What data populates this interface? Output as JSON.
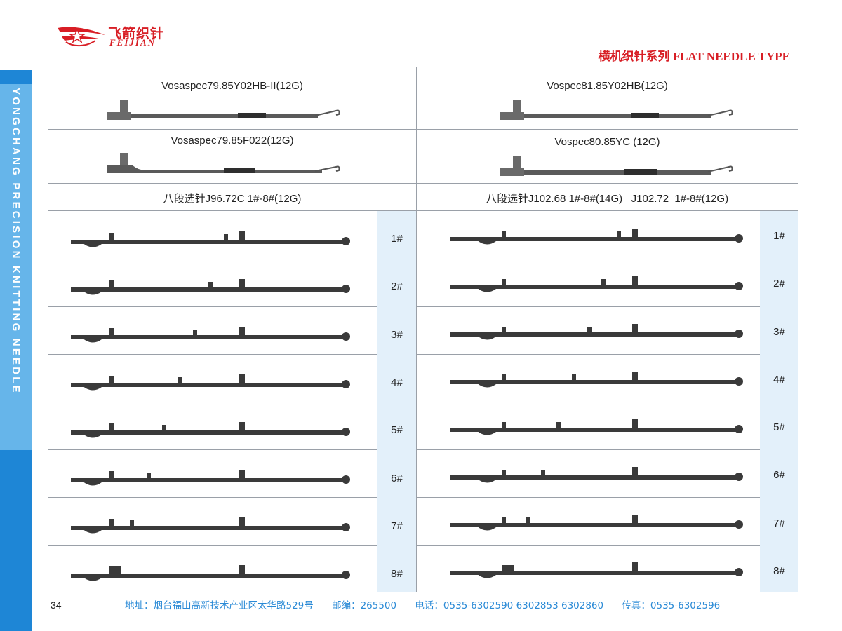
{
  "brand": {
    "name_cn": "飞箭织针",
    "name_en": "FEIJIAN",
    "side_text": "YONGCHANG PRECISION KNITTING NEEDLE"
  },
  "series_title": "横机织针系列 FLAT NEEDLE TYPE",
  "models": [
    "Vosaspec79.85Y02HB-II(12G)",
    "Vospec81.85Y02HB(12G)",
    "Vosaspec79.85F022(12G)",
    "Vospec80.85YC (12G)"
  ],
  "selector_headers": {
    "left": "八段选针J96.72C 1#-8#(12G)",
    "right": "八段选针J102.68 1#-8#(14G)   J102.72  1#-8#(12G)"
  },
  "left_numbers": [
    "1#",
    "2#",
    "3#",
    "4#",
    "5#",
    "6#",
    "7#",
    "8#"
  ],
  "right_numbers": [
    "1#",
    "2#",
    "3#",
    "4#",
    "5#",
    "6#",
    "7#",
    "8#"
  ],
  "footer": {
    "page_number": "34",
    "address": "地址：烟台福山高新技术产业区太华路529号",
    "postcode": "邮编：265500",
    "phone": "电话：0535-6302590 6302853 6302860",
    "fax": "传真：0535-6302596"
  },
  "colors": {
    "brand_red": "#d81e25",
    "side_blue": "#1e86d6",
    "side_light_blue": "#66b5ea",
    "footer_blue": "#2a8ad6",
    "number_cell_bg": "#e3f0fa",
    "needle_gray": "#3a3a3a"
  }
}
